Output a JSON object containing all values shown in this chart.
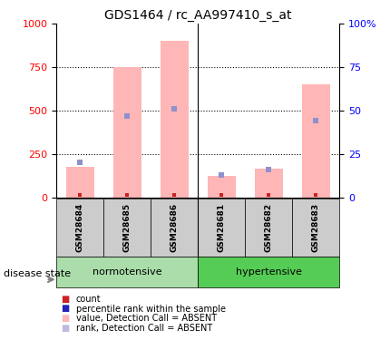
{
  "title": "GDS1464 / rc_AA997410_s_at",
  "samples": [
    "GSM28684",
    "GSM28685",
    "GSM28686",
    "GSM28681",
    "GSM28682",
    "GSM28683"
  ],
  "bar_values": [
    175,
    750,
    900,
    125,
    165,
    650
  ],
  "rank_values": [
    20,
    47,
    51,
    13,
    16,
    44
  ],
  "ylim_left": [
    0,
    1000
  ],
  "ylim_right": [
    0,
    100
  ],
  "yticks_left": [
    0,
    250,
    500,
    750,
    1000
  ],
  "yticks_right": [
    0,
    25,
    50,
    75,
    100
  ],
  "bar_color": "#ffb6b6",
  "rank_color": "#9090cc",
  "normotensive_color": "#aaddaa",
  "hypertensive_color": "#55cc55",
  "sample_bg": "#cccccc",
  "legend_items": [
    {
      "color": "#cc2222",
      "label": "count"
    },
    {
      "color": "#2222bb",
      "label": "percentile rank within the sample"
    },
    {
      "color": "#ffb6b6",
      "label": "value, Detection Call = ABSENT"
    },
    {
      "color": "#bbbbdd",
      "label": "rank, Detection Call = ABSENT"
    }
  ]
}
